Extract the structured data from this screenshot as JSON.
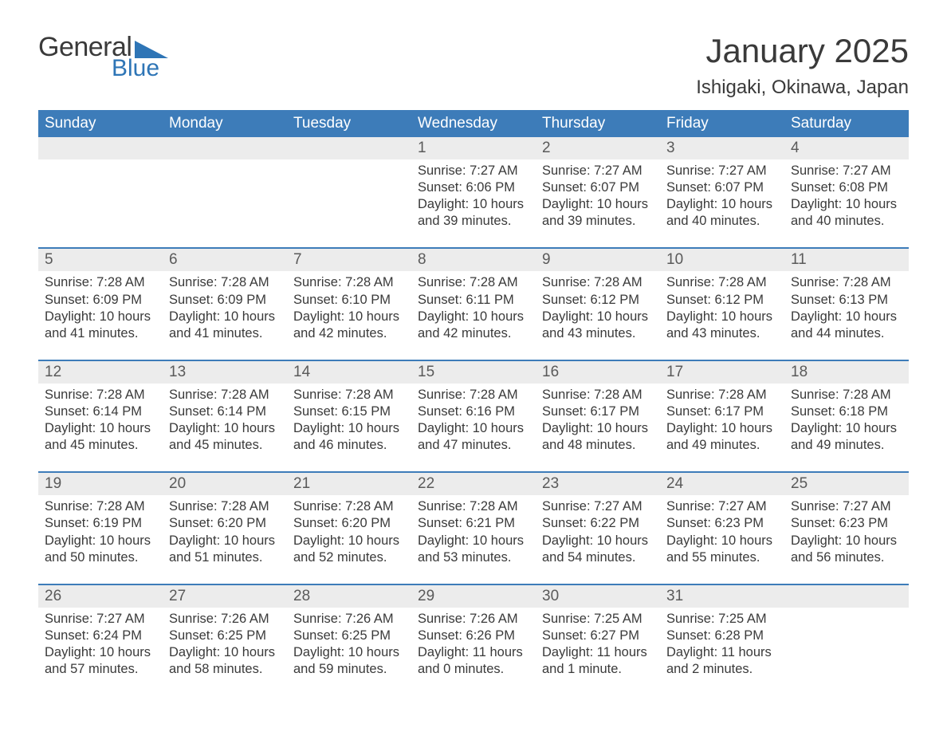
{
  "logo": {
    "text1": "General",
    "text2": "Blue",
    "tri_color": "#2e75b6"
  },
  "title": "January 2025",
  "location": "Ishigaki, Okinawa, Japan",
  "colors": {
    "header_bg": "#3d7cb9",
    "header_text": "#ffffff",
    "daynum_bg": "#ececec",
    "border_top": "#3d7cb9",
    "body_text": "#3a3a3a",
    "logo_blue": "#2e75b6"
  },
  "day_headers": [
    "Sunday",
    "Monday",
    "Tuesday",
    "Wednesday",
    "Thursday",
    "Friday",
    "Saturday"
  ],
  "weeks": [
    {
      "days": [
        {
          "n": "",
          "sunrise": "",
          "sunset": "",
          "daylight": ""
        },
        {
          "n": "",
          "sunrise": "",
          "sunset": "",
          "daylight": ""
        },
        {
          "n": "",
          "sunrise": "",
          "sunset": "",
          "daylight": ""
        },
        {
          "n": "1",
          "sunrise": "Sunrise: 7:27 AM",
          "sunset": "Sunset: 6:06 PM",
          "daylight": "Daylight: 10 hours and 39 minutes."
        },
        {
          "n": "2",
          "sunrise": "Sunrise: 7:27 AM",
          "sunset": "Sunset: 6:07 PM",
          "daylight": "Daylight: 10 hours and 39 minutes."
        },
        {
          "n": "3",
          "sunrise": "Sunrise: 7:27 AM",
          "sunset": "Sunset: 6:07 PM",
          "daylight": "Daylight: 10 hours and 40 minutes."
        },
        {
          "n": "4",
          "sunrise": "Sunrise: 7:27 AM",
          "sunset": "Sunset: 6:08 PM",
          "daylight": "Daylight: 10 hours and 40 minutes."
        }
      ]
    },
    {
      "days": [
        {
          "n": "5",
          "sunrise": "Sunrise: 7:28 AM",
          "sunset": "Sunset: 6:09 PM",
          "daylight": "Daylight: 10 hours and 41 minutes."
        },
        {
          "n": "6",
          "sunrise": "Sunrise: 7:28 AM",
          "sunset": "Sunset: 6:09 PM",
          "daylight": "Daylight: 10 hours and 41 minutes."
        },
        {
          "n": "7",
          "sunrise": "Sunrise: 7:28 AM",
          "sunset": "Sunset: 6:10 PM",
          "daylight": "Daylight: 10 hours and 42 minutes."
        },
        {
          "n": "8",
          "sunrise": "Sunrise: 7:28 AM",
          "sunset": "Sunset: 6:11 PM",
          "daylight": "Daylight: 10 hours and 42 minutes."
        },
        {
          "n": "9",
          "sunrise": "Sunrise: 7:28 AM",
          "sunset": "Sunset: 6:12 PM",
          "daylight": "Daylight: 10 hours and 43 minutes."
        },
        {
          "n": "10",
          "sunrise": "Sunrise: 7:28 AM",
          "sunset": "Sunset: 6:12 PM",
          "daylight": "Daylight: 10 hours and 43 minutes."
        },
        {
          "n": "11",
          "sunrise": "Sunrise: 7:28 AM",
          "sunset": "Sunset: 6:13 PM",
          "daylight": "Daylight: 10 hours and 44 minutes."
        }
      ]
    },
    {
      "days": [
        {
          "n": "12",
          "sunrise": "Sunrise: 7:28 AM",
          "sunset": "Sunset: 6:14 PM",
          "daylight": "Daylight: 10 hours and 45 minutes."
        },
        {
          "n": "13",
          "sunrise": "Sunrise: 7:28 AM",
          "sunset": "Sunset: 6:14 PM",
          "daylight": "Daylight: 10 hours and 45 minutes."
        },
        {
          "n": "14",
          "sunrise": "Sunrise: 7:28 AM",
          "sunset": "Sunset: 6:15 PM",
          "daylight": "Daylight: 10 hours and 46 minutes."
        },
        {
          "n": "15",
          "sunrise": "Sunrise: 7:28 AM",
          "sunset": "Sunset: 6:16 PM",
          "daylight": "Daylight: 10 hours and 47 minutes."
        },
        {
          "n": "16",
          "sunrise": "Sunrise: 7:28 AM",
          "sunset": "Sunset: 6:17 PM",
          "daylight": "Daylight: 10 hours and 48 minutes."
        },
        {
          "n": "17",
          "sunrise": "Sunrise: 7:28 AM",
          "sunset": "Sunset: 6:17 PM",
          "daylight": "Daylight: 10 hours and 49 minutes."
        },
        {
          "n": "18",
          "sunrise": "Sunrise: 7:28 AM",
          "sunset": "Sunset: 6:18 PM",
          "daylight": "Daylight: 10 hours and 49 minutes."
        }
      ]
    },
    {
      "days": [
        {
          "n": "19",
          "sunrise": "Sunrise: 7:28 AM",
          "sunset": "Sunset: 6:19 PM",
          "daylight": "Daylight: 10 hours and 50 minutes."
        },
        {
          "n": "20",
          "sunrise": "Sunrise: 7:28 AM",
          "sunset": "Sunset: 6:20 PM",
          "daylight": "Daylight: 10 hours and 51 minutes."
        },
        {
          "n": "21",
          "sunrise": "Sunrise: 7:28 AM",
          "sunset": "Sunset: 6:20 PM",
          "daylight": "Daylight: 10 hours and 52 minutes."
        },
        {
          "n": "22",
          "sunrise": "Sunrise: 7:28 AM",
          "sunset": "Sunset: 6:21 PM",
          "daylight": "Daylight: 10 hours and 53 minutes."
        },
        {
          "n": "23",
          "sunrise": "Sunrise: 7:27 AM",
          "sunset": "Sunset: 6:22 PM",
          "daylight": "Daylight: 10 hours and 54 minutes."
        },
        {
          "n": "24",
          "sunrise": "Sunrise: 7:27 AM",
          "sunset": "Sunset: 6:23 PM",
          "daylight": "Daylight: 10 hours and 55 minutes."
        },
        {
          "n": "25",
          "sunrise": "Sunrise: 7:27 AM",
          "sunset": "Sunset: 6:23 PM",
          "daylight": "Daylight: 10 hours and 56 minutes."
        }
      ]
    },
    {
      "days": [
        {
          "n": "26",
          "sunrise": "Sunrise: 7:27 AM",
          "sunset": "Sunset: 6:24 PM",
          "daylight": "Daylight: 10 hours and 57 minutes."
        },
        {
          "n": "27",
          "sunrise": "Sunrise: 7:26 AM",
          "sunset": "Sunset: 6:25 PM",
          "daylight": "Daylight: 10 hours and 58 minutes."
        },
        {
          "n": "28",
          "sunrise": "Sunrise: 7:26 AM",
          "sunset": "Sunset: 6:25 PM",
          "daylight": "Daylight: 10 hours and 59 minutes."
        },
        {
          "n": "29",
          "sunrise": "Sunrise: 7:26 AM",
          "sunset": "Sunset: 6:26 PM",
          "daylight": "Daylight: 11 hours and 0 minutes."
        },
        {
          "n": "30",
          "sunrise": "Sunrise: 7:25 AM",
          "sunset": "Sunset: 6:27 PM",
          "daylight": "Daylight: 11 hours and 1 minute."
        },
        {
          "n": "31",
          "sunrise": "Sunrise: 7:25 AM",
          "sunset": "Sunset: 6:28 PM",
          "daylight": "Daylight: 11 hours and 2 minutes."
        },
        {
          "n": "",
          "sunrise": "",
          "sunset": "",
          "daylight": ""
        }
      ]
    }
  ]
}
